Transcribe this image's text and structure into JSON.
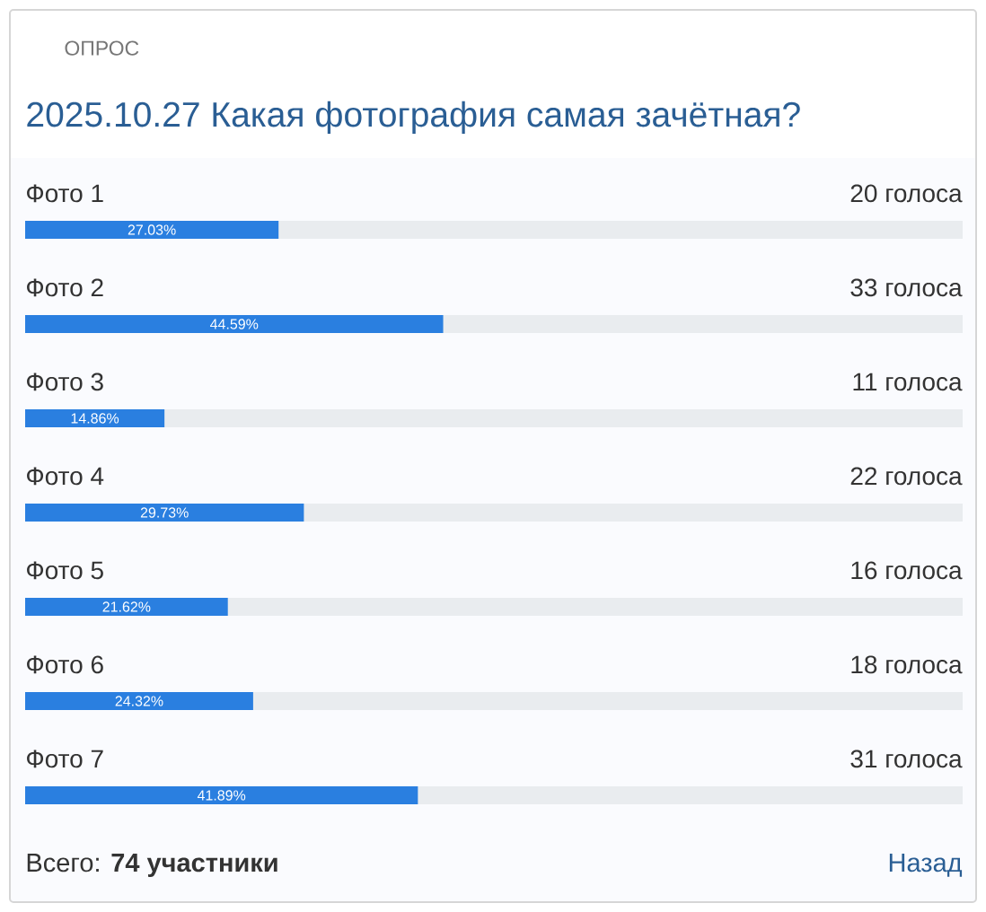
{
  "chart_data": {
    "type": "bar",
    "orientation": "horizontal",
    "title": "2025.10.27 Какая фотография самая зачётная?",
    "categories": [
      "Фото 1",
      "Фото 2",
      "Фото 3",
      "Фото 4",
      "Фото 5",
      "Фото 6",
      "Фото 7"
    ],
    "values": [
      27.03,
      44.59,
      14.86,
      29.73,
      21.62,
      24.32,
      41.89
    ],
    "value_labels": [
      "27.03%",
      "44.59%",
      "14.86%",
      "29.73%",
      "21.62%",
      "24.32%",
      "41.89%"
    ],
    "color": "#2a7fe0",
    "xlim": [
      0,
      100
    ],
    "tick_labels": "y",
    "annotations": [
      "ОПРОС",
      "20 голоса",
      "33 голоса",
      "11 голоса",
      "22 голоса",
      "16 голоса",
      "18 голоса",
      "31 голоса",
      "Всего: **74 участники**",
      "Назад"
    ]
  }
}
